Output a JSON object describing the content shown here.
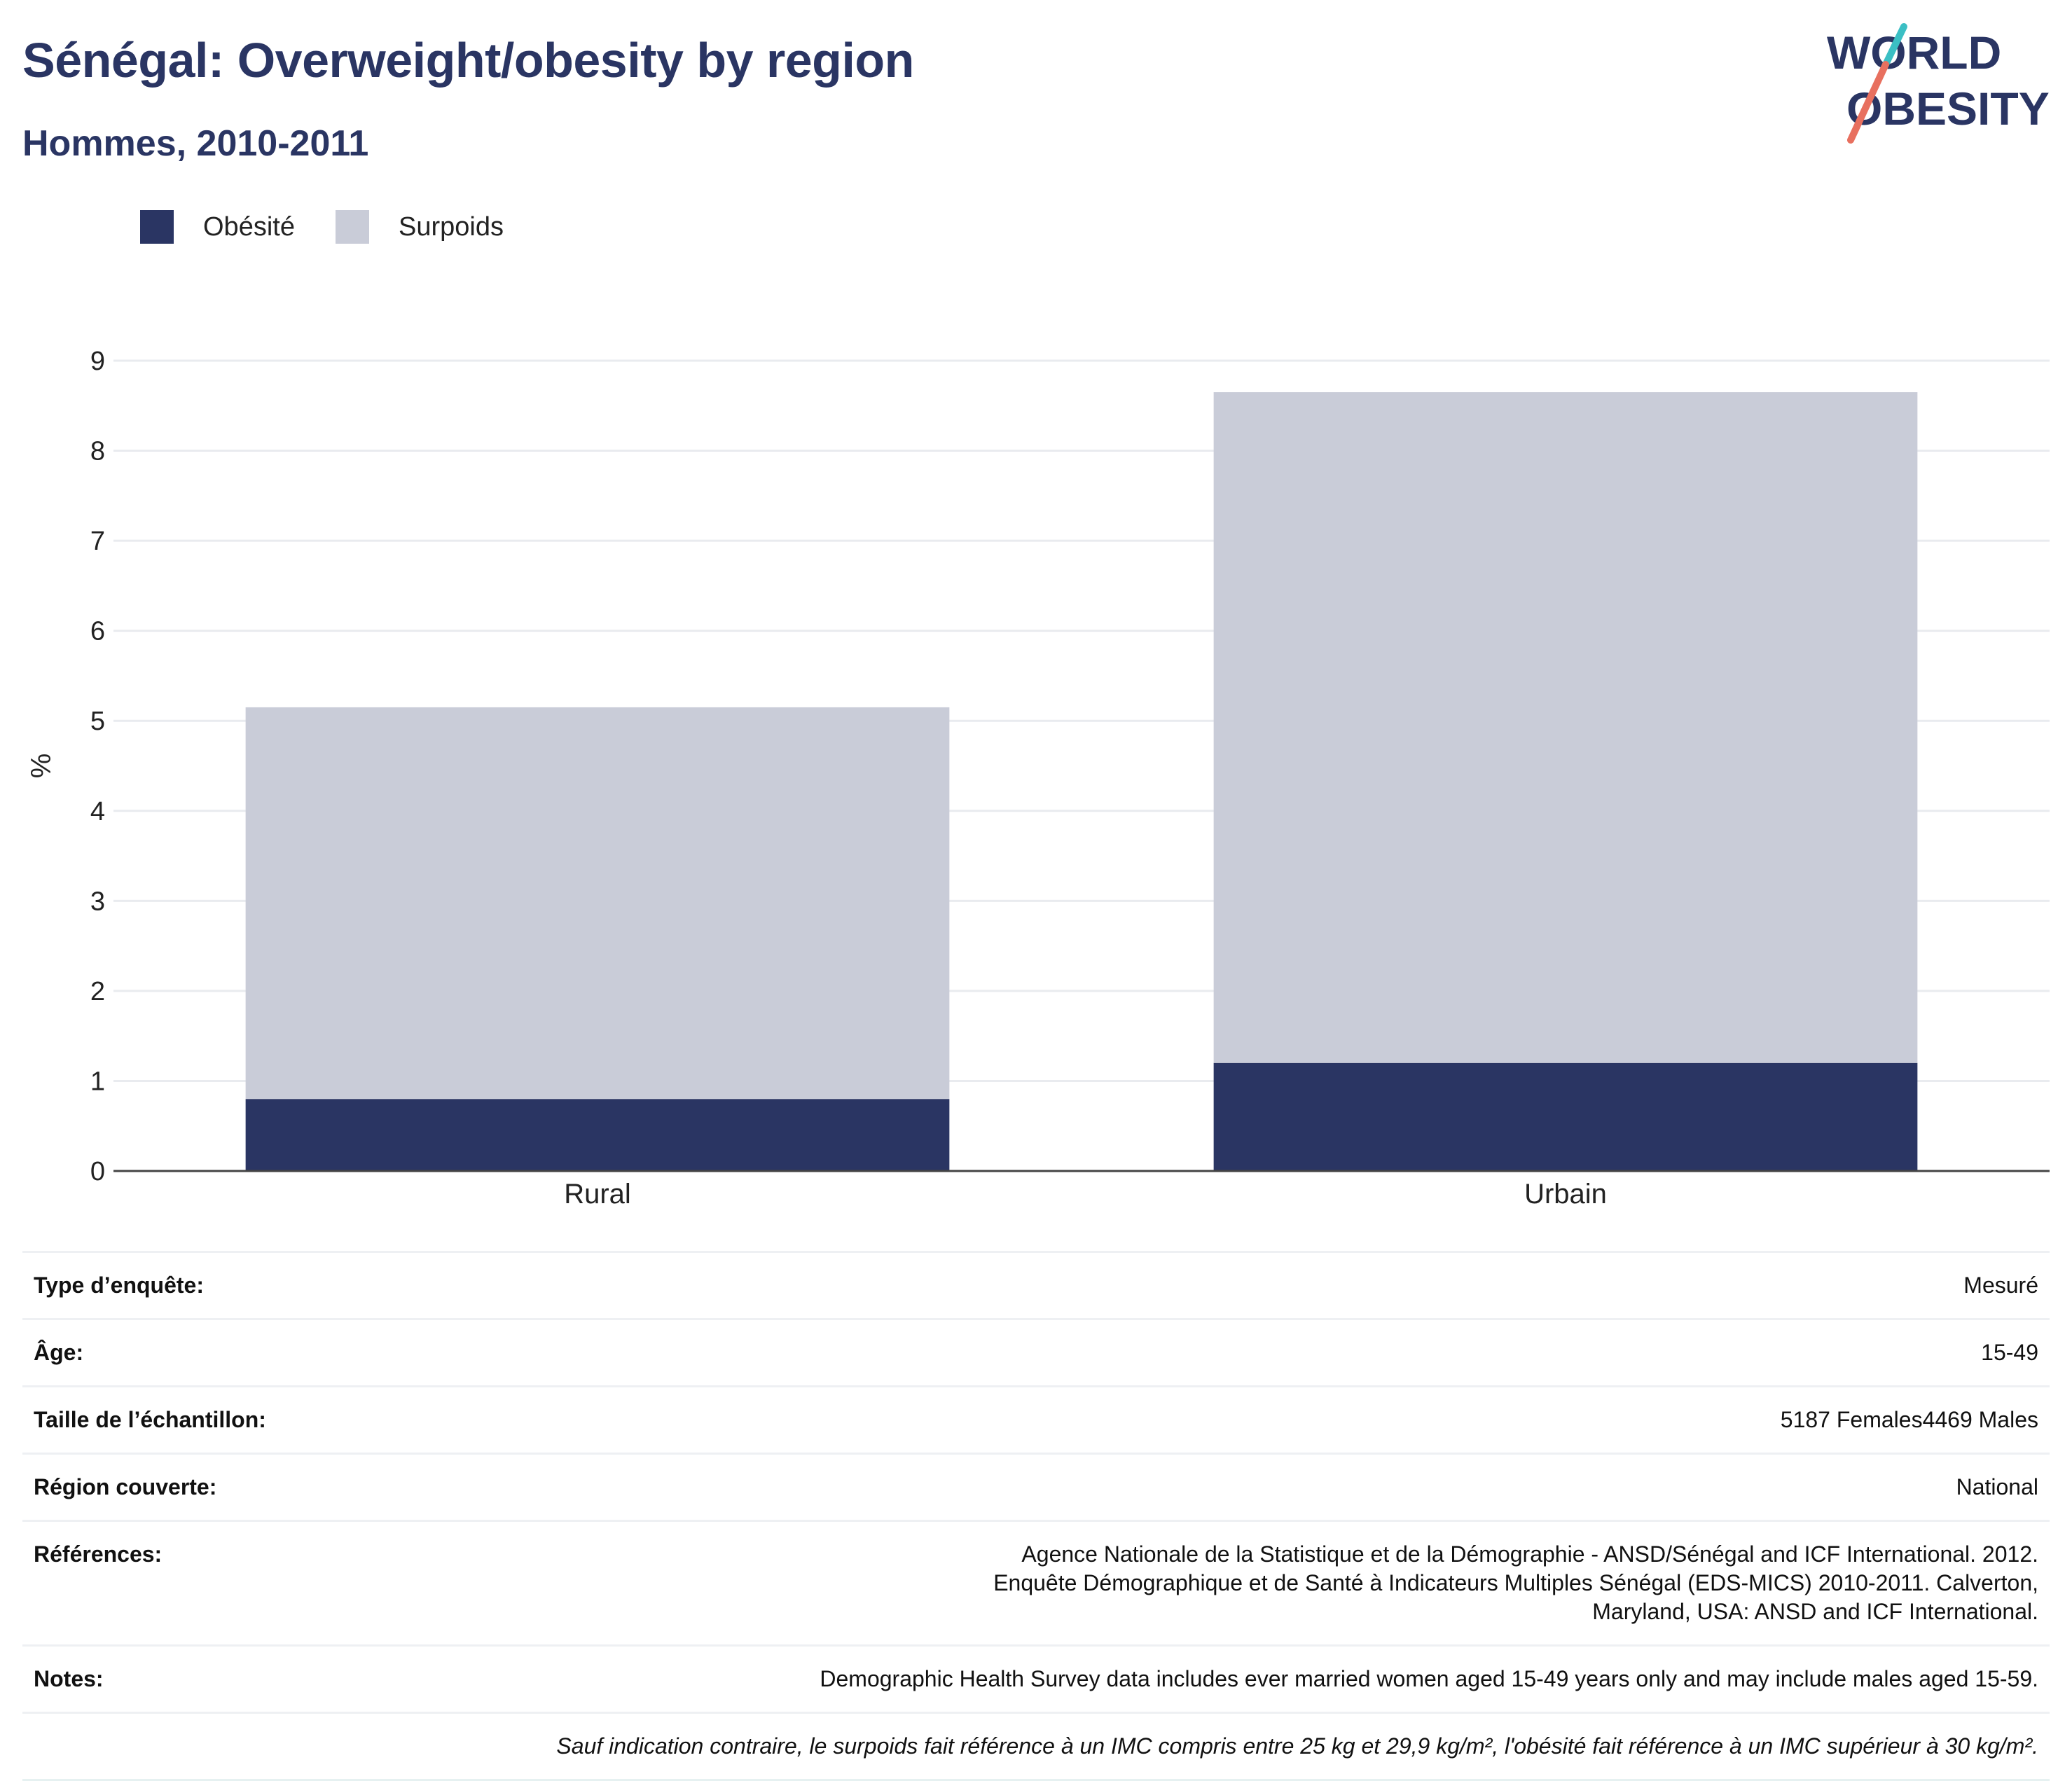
{
  "header": {
    "title": "Sénégal: Overweight/obesity by region",
    "subtitle": "Hommes, 2010-2011"
  },
  "logo": {
    "text_line1": "WORLD",
    "text_line2": "OBESITY",
    "colors": {
      "text": "#2a3563",
      "slash_teal": "#3bbfc4",
      "slash_coral": "#e8705f"
    }
  },
  "legend": [
    {
      "label": "Obésité",
      "color": "#2a3563"
    },
    {
      "label": "Surpoids",
      "color": "#c9ccd8"
    }
  ],
  "chart_data": {
    "type": "bar",
    "stacked": true,
    "categories": [
      "Rural",
      "Urbain"
    ],
    "series": [
      {
        "name": "Obésité",
        "color": "#2a3563",
        "values": [
          0.8,
          1.2
        ]
      },
      {
        "name": "Surpoids",
        "color": "#c9ccd8",
        "values": [
          4.35,
          7.45
        ]
      }
    ],
    "ylabel": "%",
    "xlabel": "",
    "ylim": [
      0,
      9
    ],
    "yticks": [
      0,
      1,
      2,
      3,
      4,
      5,
      6,
      7,
      8,
      9
    ],
    "grid": true,
    "legend_position": "top-left"
  },
  "meta": {
    "rows": [
      {
        "label": "Type d’enquête:",
        "value": "Mesuré"
      },
      {
        "label": "Âge:",
        "value": "15-49"
      },
      {
        "label": "Taille de l’échantillon:",
        "value": "5187 Females4469 Males"
      },
      {
        "label": "Région couverte:",
        "value": "National"
      },
      {
        "label": "Références:",
        "value": "Agence Nationale de la Statistique et de la Démographie - ANSD/Sénégal and ICF International. 2012. Enquête Démographique et de Santé à Indicateurs Multiples Sénégal (EDS-MICS) 2010-2011. Calverton, Maryland, USA: ANSD and ICF International."
      },
      {
        "label": "Notes:",
        "value": "Demographic Health Survey data includes ever married women aged 15-49 years only and may include males aged 15-59."
      }
    ],
    "footnote": "Sauf indication contraire, le surpoids fait référence à un IMC compris entre 25 kg et 29,9 kg/m², l'obésité fait référence à un IMC supérieur à 30 kg/m²."
  }
}
